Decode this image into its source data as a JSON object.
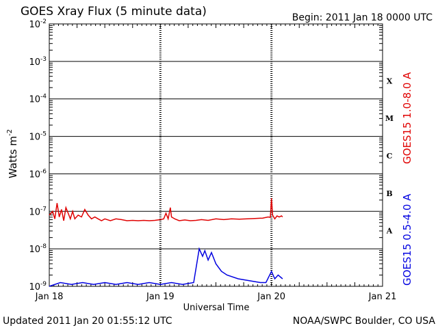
{
  "chart_data": {
    "type": "line",
    "title": "GOES Xray Flux (5 minute data)",
    "begin_label": "Begin:  2011 Jan 18 0000 UTC",
    "xlabel": "Universal Time",
    "ylabel": "Watts m",
    "ylabel_sup": "-2",
    "yscale": "log",
    "ylim": [
      1e-09,
      0.01
    ],
    "xlim_days": [
      0,
      3
    ],
    "grid": true,
    "x_ticks": [
      {
        "day": 0,
        "label": "Jan 18"
      },
      {
        "day": 1,
        "label": "Jan 19"
      },
      {
        "day": 2,
        "label": "Jan 20"
      },
      {
        "day": 3,
        "label": "Jan 21"
      }
    ],
    "y_ticks": [
      {
        "exp": -9,
        "base": "10",
        "sup": "-9"
      },
      {
        "exp": -8,
        "base": "10",
        "sup": "-8"
      },
      {
        "exp": -7,
        "base": "10",
        "sup": "-7"
      },
      {
        "exp": -6,
        "base": "10",
        "sup": "-6"
      },
      {
        "exp": -5,
        "base": "10",
        "sup": "-5"
      },
      {
        "exp": -4,
        "base": "10",
        "sup": "-4"
      },
      {
        "exp": -3,
        "base": "10",
        "sup": "-3"
      },
      {
        "exp": -2,
        "base": "10",
        "sup": "-2"
      }
    ],
    "flare_classes": [
      {
        "label": "A",
        "exp": -7.5
      },
      {
        "label": "B",
        "exp": -6.5
      },
      {
        "label": "C",
        "exp": -5.5
      },
      {
        "label": "M",
        "exp": -4.5
      },
      {
        "label": "X",
        "exp": -3.5
      }
    ],
    "series": [
      {
        "name": "GOES15 1.0-8.0 A",
        "color": "#e00000",
        "points": [
          [
            0.0,
            -7.1
          ],
          [
            0.03,
            -7.0
          ],
          [
            0.05,
            -7.2
          ],
          [
            0.07,
            -6.78
          ],
          [
            0.09,
            -7.15
          ],
          [
            0.11,
            -6.95
          ],
          [
            0.13,
            -7.25
          ],
          [
            0.15,
            -6.9
          ],
          [
            0.17,
            -7.05
          ],
          [
            0.19,
            -7.2
          ],
          [
            0.21,
            -7.0
          ],
          [
            0.23,
            -7.2
          ],
          [
            0.26,
            -7.1
          ],
          [
            0.29,
            -7.15
          ],
          [
            0.32,
            -6.95
          ],
          [
            0.35,
            -7.1
          ],
          [
            0.38,
            -7.2
          ],
          [
            0.41,
            -7.15
          ],
          [
            0.44,
            -7.2
          ],
          [
            0.47,
            -7.25
          ],
          [
            0.5,
            -7.2
          ],
          [
            0.55,
            -7.25
          ],
          [
            0.6,
            -7.2
          ],
          [
            0.65,
            -7.22
          ],
          [
            0.7,
            -7.25
          ],
          [
            0.75,
            -7.24
          ],
          [
            0.8,
            -7.25
          ],
          [
            0.85,
            -7.24
          ],
          [
            0.9,
            -7.25
          ],
          [
            0.95,
            -7.24
          ],
          [
            1.0,
            -7.22
          ],
          [
            1.03,
            -7.2
          ],
          [
            1.05,
            -7.05
          ],
          [
            1.07,
            -7.2
          ],
          [
            1.09,
            -6.9
          ],
          [
            1.1,
            -7.15
          ],
          [
            1.13,
            -7.2
          ],
          [
            1.17,
            -7.25
          ],
          [
            1.22,
            -7.23
          ],
          [
            1.27,
            -7.25
          ],
          [
            1.32,
            -7.24
          ],
          [
            1.37,
            -7.22
          ],
          [
            1.43,
            -7.24
          ],
          [
            1.5,
            -7.2
          ],
          [
            1.57,
            -7.22
          ],
          [
            1.64,
            -7.2
          ],
          [
            1.71,
            -7.21
          ],
          [
            1.78,
            -7.2
          ],
          [
            1.85,
            -7.19
          ],
          [
            1.92,
            -7.18
          ],
          [
            1.97,
            -7.15
          ],
          [
            1.99,
            -7.16
          ],
          [
            2.0,
            -6.65
          ],
          [
            2.01,
            -7.1
          ],
          [
            2.03,
            -7.2
          ],
          [
            2.05,
            -7.12
          ],
          [
            2.07,
            -7.15
          ],
          [
            2.09,
            -7.12
          ],
          [
            2.1,
            -7.15
          ]
        ]
      },
      {
        "name": "GOES15 0.5-4.0 A",
        "color": "#0000e0",
        "points": [
          [
            0.0,
            -9.0
          ],
          [
            0.1,
            -8.9
          ],
          [
            0.2,
            -8.95
          ],
          [
            0.3,
            -8.9
          ],
          [
            0.4,
            -8.95
          ],
          [
            0.5,
            -8.9
          ],
          [
            0.6,
            -8.95
          ],
          [
            0.7,
            -8.9
          ],
          [
            0.8,
            -8.95
          ],
          [
            0.9,
            -8.9
          ],
          [
            1.0,
            -8.95
          ],
          [
            1.1,
            -8.9
          ],
          [
            1.2,
            -8.95
          ],
          [
            1.3,
            -8.9
          ],
          [
            1.35,
            -8.0
          ],
          [
            1.38,
            -8.2
          ],
          [
            1.4,
            -8.05
          ],
          [
            1.43,
            -8.3
          ],
          [
            1.46,
            -8.1
          ],
          [
            1.5,
            -8.4
          ],
          [
            1.55,
            -8.6
          ],
          [
            1.6,
            -8.7
          ],
          [
            1.7,
            -8.8
          ],
          [
            1.8,
            -8.85
          ],
          [
            1.9,
            -8.9
          ],
          [
            1.95,
            -8.9
          ],
          [
            2.0,
            -8.6
          ],
          [
            2.03,
            -8.8
          ],
          [
            2.06,
            -8.7
          ],
          [
            2.1,
            -8.8
          ]
        ]
      }
    ]
  },
  "footer": {
    "updated": "Updated 2011 Jan 20 01:55:12 UTC",
    "source": "NOAA/SWPC Boulder, CO USA"
  }
}
